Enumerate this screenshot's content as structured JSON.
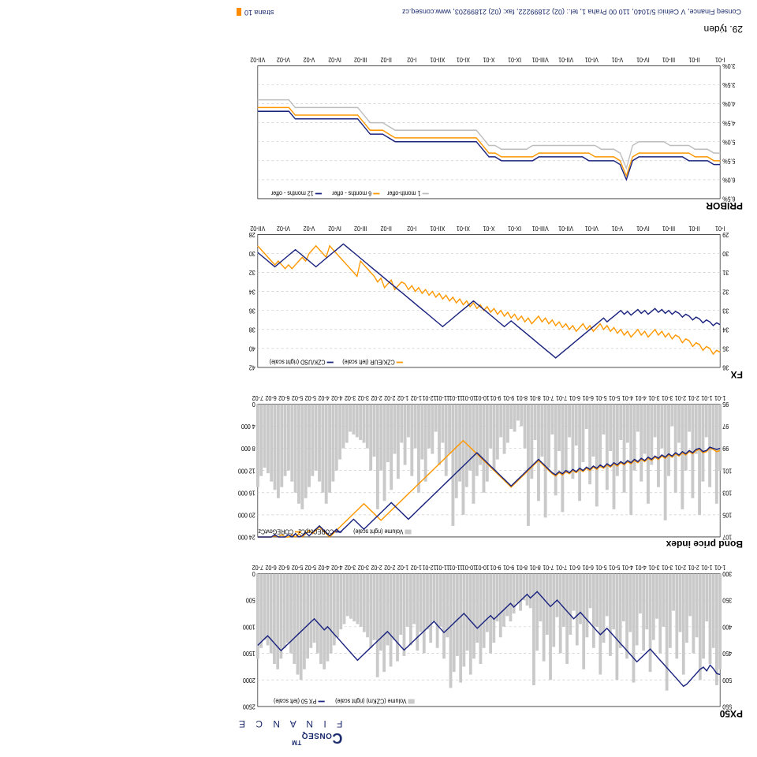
{
  "page": {
    "week": "29. týden",
    "footer": "Conseq Finance, V Celnici 5/1040, 110 00 Praha 1, tel.: (02) 21899222, fax: (02) 21899203, www.conseq.cz",
    "pagelabel": "strana 10"
  },
  "colors": {
    "navy": "#1a237e",
    "orange": "#ff9800",
    "grey": "#bdbdbd",
    "greyFill": "#c9c9c9",
    "gridline": "#dddddd",
    "axis": "#000000"
  },
  "xcats_short": [
    "1-01",
    "2-01",
    "3-01",
    "4-01",
    "5-01",
    "6-01",
    "7-01",
    "8-01",
    "9-01",
    "10-01",
    "11-01",
    "12-01",
    "1-02",
    "2-02",
    "3-02",
    "4-02",
    "5-02",
    "6-02",
    "7-02"
  ],
  "xcats_double": [
    "1-01",
    "1-01",
    "2-01",
    "2-01",
    "3-01",
    "3-01",
    "4-01",
    "4-01",
    "5-01",
    "5-01",
    "6-01",
    "6-01",
    "7-01",
    "7-01",
    "8-01",
    "8-01",
    "9-01",
    "9-01",
    "10-01",
    "10-01",
    "11-01",
    "11-01",
    "12-01",
    "1-02",
    "1-02",
    "2-02",
    "2-02",
    "3-02",
    "3-02",
    "4-02",
    "4-02",
    "5-02",
    "5-02",
    "6-02",
    "6-02",
    "7-02"
  ],
  "xcats_roman": [
    "I-01",
    "II-01",
    "III-01",
    "IV-01",
    "V-01",
    "VI-01",
    "VII-01",
    "VIII-01",
    "IX-01",
    "X-01",
    "XI-01",
    "XII-01",
    "I-02",
    "II-02",
    "III-02",
    "IV-02",
    "V-02",
    "VI-02",
    "VII-02"
  ],
  "px50": {
    "title": "PX50",
    "left_ticks": [
      300,
      350,
      400,
      450,
      500,
      550
    ],
    "right_ticks": [
      0,
      500,
      1000,
      1500,
      2000,
      2500
    ],
    "legend": [
      "Volume (CZKm) (right scale)",
      "PX 50 (left scale)"
    ],
    "volume": [
      1800,
      2100,
      1400,
      1700,
      900,
      1600,
      2000,
      1200,
      1500,
      800,
      1300,
      1900,
      1100,
      1600,
      700,
      1400,
      2200,
      1000,
      1500,
      850,
      1250,
      1850,
      1050,
      1450,
      750,
      1350,
      2050,
      1100,
      1600,
      900,
      1400,
      2000,
      1050,
      1550,
      800,
      1300,
      1900,
      1000,
      1400,
      650,
      1200,
      1800,
      950,
      1350,
      700,
      1150,
      1700,
      1000,
      1500,
      820,
      1380,
      2000,
      1150,
      1650,
      900,
      1450,
      2100,
      650,
      600,
      500,
      700,
      550,
      750,
      900,
      800,
      1000,
      1200,
      900,
      1300,
      1500,
      1100,
      1400,
      1700,
      1300,
      1600,
      1900,
      1450,
      1750,
      2050,
      1550,
      1850,
      2150,
      1200,
      1600,
      1000,
      1400,
      900,
      1300,
      1050,
      1500,
      1100,
      1450,
      950,
      1350,
      1000,
      1550,
      1150,
      1650,
      1250,
      1750,
      1350,
      1850,
      1450,
      1950,
      1250,
      1400,
      1200,
      1100,
      1000,
      950,
      900,
      850,
      800,
      950,
      1050,
      1200,
      1350,
      1500,
      1650,
      1800,
      1700,
      1500,
      1300,
      1400,
      1600,
      1800,
      2000,
      1900,
      1700,
      1500,
      1300,
      1400,
      1600,
      1800,
      1700,
      1500,
      1350,
      1250,
      1400,
      1600
    ],
    "line": [
      490,
      488,
      479,
      472,
      483,
      476,
      480,
      487,
      494,
      501,
      508,
      512,
      505,
      498,
      491,
      484,
      477,
      470,
      463,
      456,
      449,
      442,
      448,
      454,
      460,
      466,
      459,
      452,
      445,
      438,
      431,
      424,
      417,
      410,
      403,
      409,
      415,
      408,
      401,
      394,
      387,
      380,
      373,
      379,
      385,
      378,
      371,
      364,
      357,
      350,
      356,
      362,
      355,
      348,
      341,
      334,
      340,
      346,
      339,
      345,
      351,
      357,
      363,
      356,
      362,
      368,
      374,
      380,
      386,
      379,
      385,
      391,
      397,
      403,
      396,
      389,
      382,
      375,
      381,
      387,
      393,
      399,
      405,
      411,
      404,
      397,
      390,
      396,
      402,
      408,
      414,
      420,
      426,
      432,
      438,
      444,
      437,
      430,
      423,
      416,
      409,
      415,
      421,
      427,
      433,
      439,
      445,
      451,
      457,
      463,
      456,
      449,
      442,
      435,
      428,
      421,
      414,
      407,
      400,
      406,
      399,
      392,
      385,
      391,
      397,
      403,
      409,
      415,
      421,
      427,
      433,
      439,
      445,
      438,
      431,
      424,
      417,
      423,
      429,
      435
    ]
  },
  "bond": {
    "title": "Bond price index",
    "left_ticks": [
      95,
      97,
      99,
      101,
      103,
      105,
      107
    ],
    "right_ticks": [
      0,
      4000,
      8000,
      12000,
      16000,
      20000,
      24000
    ],
    "legend": [
      "Volume (right scale)",
      "CORECorpCz",
      "COREGovtCz"
    ],
    "volume": [
      12000,
      18000,
      8000,
      15000,
      6000,
      14000,
      20000,
      9000,
      17000,
      5000,
      12000,
      19000,
      7000,
      16000,
      4000,
      13000,
      21000,
      8000,
      15000,
      6000,
      11000,
      18000,
      9000,
      14000,
      5000,
      12000,
      20000,
      7000,
      16000,
      6500,
      13000,
      19000,
      8500,
      15500,
      5500,
      11500,
      18500,
      9500,
      14500,
      4500,
      10500,
      17500,
      7500,
      13500,
      6000,
      12500,
      19500,
      8500,
      16500,
      5500,
      11500,
      20500,
      9500,
      17500,
      6500,
      13500,
      22000,
      8000,
      4000,
      3000,
      5000,
      4500,
      7000,
      9000,
      6000,
      10000,
      12000,
      8000,
      14000,
      16000,
      11000,
      13000,
      18000,
      12000,
      15000,
      20000,
      14000,
      17000,
      22000,
      9000,
      13000,
      7000,
      11000,
      5000,
      9000,
      8000,
      14000,
      10000,
      16000,
      8000,
      13000,
      6000,
      11000,
      7000,
      13500,
      9000,
      15500,
      10500,
      17500,
      12000,
      19000,
      9500,
      12000,
      8000,
      7000,
      6500,
      6000,
      5500,
      5000,
      7000,
      8000,
      10000,
      12000,
      14000,
      16000,
      18000,
      16000,
      14000,
      12000,
      13000,
      15000,
      17000,
      19000,
      18000,
      16000,
      14000,
      12000,
      13000,
      15000,
      17000,
      15500,
      14000,
      12500,
      11500,
      13000,
      15000
    ],
    "corp": [
      99.0,
      99.1,
      99.0,
      98.9,
      99.2,
      99.3,
      99.0,
      99.1,
      99.4,
      99.2,
      99.5,
      99.3,
      99.6,
      99.4,
      99.7,
      99.5,
      99.8,
      99.6,
      99.9,
      99.7,
      100.0,
      99.8,
      100.1,
      99.9,
      100.2,
      100.0,
      100.3,
      100.1,
      100.4,
      100.2,
      100.5,
      100.3,
      100.6,
      100.4,
      100.7,
      100.5,
      100.8,
      100.6,
      100.9,
      100.7,
      101.0,
      100.8,
      101.1,
      100.9,
      101.2,
      101.0,
      101.3,
      101.1,
      101.4,
      101.2,
      100.9,
      100.6,
      100.3,
      100.0,
      100.3,
      100.6,
      100.9,
      101.2,
      101.5,
      101.8,
      102.1,
      102.4,
      102.1,
      101.8,
      101.5,
      101.2,
      100.9,
      100.6,
      100.3,
      100.0,
      99.7,
      99.4,
      99.7,
      100.0,
      100.3,
      100.6,
      100.9,
      101.2,
      101.5,
      101.8,
      102.1,
      102.4,
      102.7,
      103.0,
      103.3,
      103.6,
      103.9,
      104.2,
      104.5,
      104.8,
      105.1,
      105.4,
      105.1,
      104.8,
      104.5,
      104.2,
      103.9,
      104.2,
      104.5,
      104.8,
      105.1,
      105.4,
      105.7,
      106.0,
      106.3,
      106.0,
      105.7,
      105.4,
      105.7,
      106.0,
      106.3,
      106.6,
      106.3,
      106.6,
      106.9,
      106.6,
      106.3,
      106.0,
      106.3,
      106.6,
      106.9,
      106.6,
      106.9,
      107.0,
      106.7,
      107.0,
      106.8,
      107.0,
      107.0,
      107.0,
      106.8,
      107.0,
      107.0,
      107.0,
      107.0,
      107.0
    ],
    "govt": [
      99.2,
      99.3,
      99.1,
      99.0,
      99.3,
      99.4,
      99.1,
      99.2,
      99.5,
      99.3,
      99.6,
      99.4,
      99.7,
      99.5,
      99.8,
      99.6,
      99.9,
      99.7,
      100.0,
      99.8,
      100.1,
      99.9,
      100.2,
      100.0,
      100.3,
      100.1,
      100.4,
      100.2,
      100.5,
      100.3,
      100.6,
      100.4,
      100.7,
      100.5,
      100.8,
      100.6,
      100.9,
      100.7,
      101.0,
      100.8,
      101.1,
      100.9,
      101.2,
      101.0,
      101.3,
      101.1,
      101.4,
      101.2,
      101.5,
      101.3,
      101.0,
      100.7,
      100.4,
      100.1,
      100.4,
      100.7,
      101.0,
      101.3,
      101.6,
      101.9,
      102.2,
      102.5,
      102.2,
      101.9,
      101.6,
      101.3,
      101.0,
      100.7,
      100.4,
      100.1,
      99.8,
      99.5,
      99.2,
      98.9,
      98.6,
      98.3,
      98.6,
      98.9,
      99.2,
      99.5,
      99.8,
      100.1,
      100.4,
      100.7,
      101.0,
      101.3,
      101.6,
      101.9,
      102.2,
      102.5,
      102.8,
      103.1,
      103.4,
      103.7,
      104.0,
      104.3,
      104.6,
      104.9,
      105.2,
      105.5,
      105.2,
      104.9,
      104.6,
      104.3,
      104.0,
      104.3,
      104.6,
      104.9,
      105.2,
      105.5,
      105.8,
      106.1,
      106.4,
      106.7,
      107.0,
      106.7,
      106.4,
      106.1,
      106.4,
      106.7,
      106.4,
      106.7,
      107.0,
      106.7,
      107.0,
      106.8,
      107.0,
      107.0,
      106.8,
      107.0,
      106.9,
      107.0,
      107.0,
      107.0,
      107.0,
      107.0
    ]
  },
  "fx": {
    "title": "FX",
    "left_ticks": [
      29.0,
      30.0,
      31.0,
      32.0,
      33.0,
      34.0,
      35.0,
      36.0
    ],
    "right_ticks": [
      28.0,
      30.0,
      32.0,
      34.0,
      36.0,
      38.0,
      40.0,
      42.0
    ],
    "legend": [
      "CZK/EUR (left scale)",
      "CZK/USD (right scale)"
    ],
    "eur": [
      35.2,
      35.1,
      35.3,
      35.0,
      34.9,
      35.1,
      34.8,
      34.7,
      34.9,
      34.6,
      34.5,
      34.7,
      34.4,
      34.3,
      34.5,
      34.2,
      34.4,
      34.1,
      34.3,
      34.0,
      34.2,
      34.4,
      34.1,
      34.3,
      34.0,
      34.2,
      34.4,
      34.1,
      34.3,
      34.0,
      34.2,
      33.9,
      34.1,
      33.8,
      34.0,
      33.7,
      33.9,
      34.1,
      33.8,
      34.0,
      33.7,
      33.9,
      34.1,
      33.8,
      34.0,
      33.7,
      33.9,
      33.6,
      33.8,
      33.5,
      33.7,
      33.4,
      33.6,
      33.3,
      33.5,
      33.7,
      33.4,
      33.6,
      33.3,
      33.5,
      33.2,
      33.4,
      33.1,
      33.3,
      33.0,
      33.2,
      32.9,
      33.1,
      32.8,
      33.0,
      32.7,
      32.9,
      32.6,
      32.8,
      32.5,
      32.7,
      32.4,
      32.6,
      32.3,
      32.5,
      32.2,
      32.4,
      32.1,
      32.3,
      32.0,
      32.2,
      31.9,
      32.1,
      31.8,
      32.0,
      31.7,
      31.9,
      31.6,
      31.5,
      31.7,
      31.9,
      31.4,
      31.6,
      31.8,
      31.3,
      31.5,
      31.2,
      31.0,
      30.8,
      30.6,
      30.4,
      31.2,
      31.0,
      30.8,
      30.6,
      30.4,
      30.2,
      30.0,
      29.8,
      29.6,
      30.2,
      30.0,
      29.8,
      29.6,
      29.8,
      30.0,
      30.4,
      30.2,
      30.4,
      30.6,
      30.8,
      30.6,
      30.8,
      30.6,
      30.4,
      30.6,
      30.4,
      30.2,
      30.0,
      29.8,
      29.6
    ],
    "usd": [
      37.5,
      37.3,
      37.6,
      37.2,
      37.0,
      37.3,
      36.9,
      36.7,
      37.0,
      36.6,
      36.4,
      36.7,
      36.3,
      36.1,
      36.4,
      36.0,
      36.3,
      35.9,
      36.2,
      35.8,
      36.1,
      36.4,
      36.0,
      36.3,
      35.9,
      36.2,
      36.5,
      36.1,
      36.4,
      36.0,
      36.3,
      36.6,
      36.9,
      37.2,
      36.8,
      37.1,
      37.4,
      37.7,
      38.0,
      38.3,
      38.6,
      38.9,
      39.2,
      39.5,
      39.8,
      40.1,
      40.4,
      40.7,
      41.0,
      40.7,
      40.4,
      40.1,
      39.8,
      39.5,
      39.2,
      38.9,
      38.6,
      38.3,
      38.0,
      37.7,
      37.4,
      37.1,
      37.4,
      37.7,
      37.4,
      37.1,
      36.8,
      36.5,
      36.2,
      35.9,
      35.6,
      35.3,
      35.0,
      35.3,
      35.6,
      35.9,
      36.2,
      36.5,
      36.8,
      37.1,
      37.4,
      37.7,
      37.4,
      37.1,
      36.8,
      36.5,
      36.2,
      35.9,
      35.6,
      35.3,
      35.0,
      34.7,
      34.4,
      34.1,
      33.8,
      33.5,
      33.2,
      32.9,
      32.6,
      32.3,
      32.0,
      31.7,
      31.4,
      31.1,
      30.8,
      30.5,
      30.2,
      29.9,
      29.6,
      29.3,
      29.0,
      29.3,
      29.6,
      29.9,
      30.2,
      30.5,
      30.8,
      31.1,
      31.4,
      31.1,
      30.8,
      30.5,
      30.2,
      29.9,
      29.6,
      29.9,
      30.2,
      30.5,
      30.8,
      31.1,
      31.4,
      31.1,
      30.8,
      30.5,
      30.2,
      29.9
    ]
  },
  "pribor": {
    "title": "PRIBOR",
    "left_ticks": [
      "3.0%",
      "3.5%",
      "4.0%",
      "4.5%",
      "5.0%",
      "5.5%",
      "6.0%",
      "6.5%"
    ],
    "left_vals": [
      3.0,
      3.5,
      4.0,
      4.5,
      5.0,
      5.5,
      6.0,
      6.5
    ],
    "legend": [
      "1 month-offer",
      "6 months - offer",
      "12 months - offer"
    ],
    "m1": [
      5.3,
      5.3,
      5.2,
      5.2,
      5.2,
      5.1,
      5.1,
      5.1,
      5.1,
      5.0,
      5.0,
      5.0,
      5.0,
      5.0,
      5.1,
      5.7,
      5.3,
      5.2,
      5.2,
      5.2,
      5.1,
      5.1,
      5.1,
      5.1,
      5.1,
      5.1,
      5.1,
      5.1,
      5.1,
      5.1,
      5.1,
      5.2,
      5.2,
      5.2,
      5.2,
      5.2,
      5.1,
      5.1,
      4.9,
      4.7,
      4.7,
      4.7,
      4.7,
      4.7,
      4.7,
      4.7,
      4.7,
      4.7,
      4.7,
      4.7,
      4.7,
      4.7,
      4.7,
      4.6,
      4.5,
      4.5,
      4.5,
      4.3,
      4.1,
      4.1,
      4.1,
      4.1,
      4.1,
      4.1,
      4.1,
      4.1,
      4.1,
      4.1,
      4.1,
      3.9,
      3.9,
      3.9,
      3.9,
      3.9,
      3.9
    ],
    "m6": [
      5.5,
      5.5,
      5.4,
      5.4,
      5.4,
      5.3,
      5.3,
      5.3,
      5.3,
      5.3,
      5.3,
      5.3,
      5.3,
      5.3,
      5.4,
      5.9,
      5.5,
      5.4,
      5.4,
      5.4,
      5.4,
      5.3,
      5.3,
      5.3,
      5.3,
      5.3,
      5.3,
      5.3,
      5.3,
      5.3,
      5.4,
      5.4,
      5.4,
      5.4,
      5.4,
      5.4,
      5.3,
      5.3,
      5.1,
      4.9,
      4.9,
      4.9,
      4.9,
      4.9,
      4.9,
      4.9,
      4.9,
      4.9,
      4.9,
      4.9,
      4.9,
      4.9,
      4.9,
      4.8,
      4.7,
      4.7,
      4.7,
      4.5,
      4.3,
      4.3,
      4.3,
      4.3,
      4.3,
      4.3,
      4.3,
      4.3,
      4.3,
      4.3,
      4.3,
      4.1,
      4.1,
      4.1,
      4.1,
      4.1,
      4.1
    ],
    "m12": [
      5.6,
      5.6,
      5.5,
      5.5,
      5.5,
      5.5,
      5.4,
      5.4,
      5.4,
      5.4,
      5.4,
      5.4,
      5.4,
      5.4,
      5.5,
      6.0,
      5.6,
      5.5,
      5.5,
      5.5,
      5.5,
      5.5,
      5.4,
      5.4,
      5.4,
      5.4,
      5.4,
      5.4,
      5.4,
      5.4,
      5.5,
      5.5,
      5.5,
      5.5,
      5.5,
      5.5,
      5.4,
      5.4,
      5.2,
      5.0,
      5.0,
      5.0,
      5.0,
      5.0,
      5.0,
      5.0,
      5.0,
      5.0,
      5.0,
      5.0,
      5.0,
      5.0,
      5.0,
      4.9,
      4.8,
      4.8,
      4.8,
      4.6,
      4.4,
      4.4,
      4.4,
      4.4,
      4.4,
      4.4,
      4.4,
      4.4,
      4.4,
      4.4,
      4.4,
      4.2,
      4.2,
      4.2,
      4.2,
      4.2,
      4.2
    ]
  }
}
